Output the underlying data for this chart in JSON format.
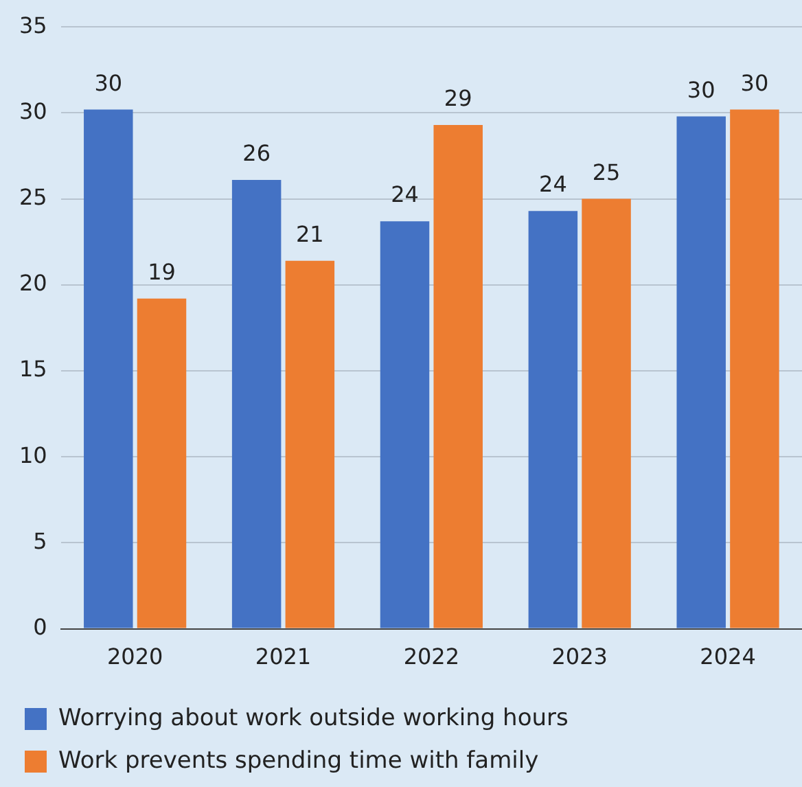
{
  "chart_data": {
    "type": "bar",
    "categories": [
      "2020",
      "2021",
      "2022",
      "2023",
      "2024"
    ],
    "series": [
      {
        "name": "Worrying about work outside working hours",
        "color": "#4472c4",
        "values": [
          30.2,
          26.1,
          23.7,
          24.3,
          29.8
        ],
        "value_labels": [
          "30",
          "26",
          "24",
          "24",
          "30"
        ]
      },
      {
        "name": "Work prevents spending time with family",
        "color": "#ed7d31",
        "values": [
          19.2,
          21.4,
          29.3,
          25,
          30.2
        ],
        "value_labels": [
          "19",
          "21",
          "29",
          "25",
          "30"
        ]
      }
    ],
    "ylim": [
      0,
      35
    ],
    "yticks": [
      0,
      5,
      10,
      15,
      20,
      25,
      30,
      35
    ],
    "grid": "y",
    "legend": "bottom"
  }
}
